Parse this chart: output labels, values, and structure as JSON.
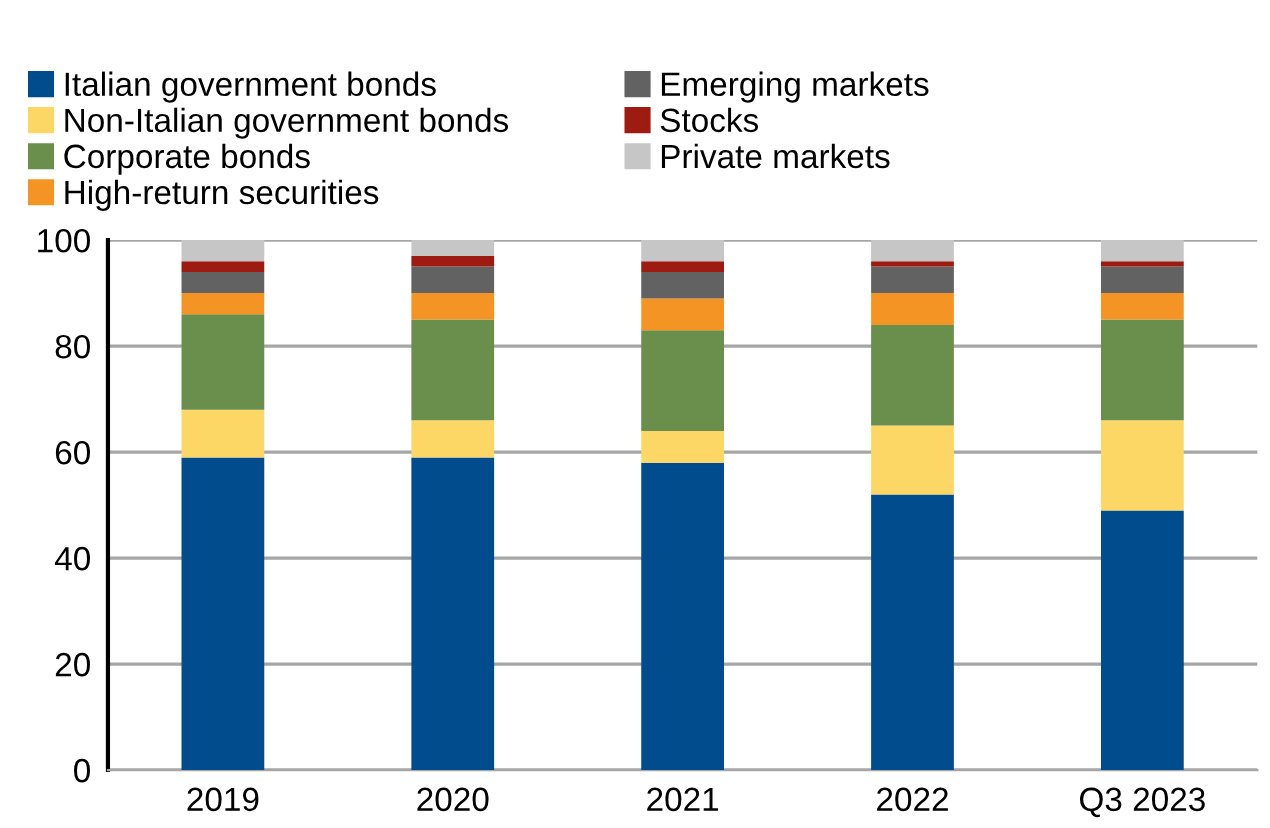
{
  "chart_data": {
    "type": "bar",
    "stacked": true,
    "categories": [
      "2019",
      "2020",
      "2021",
      "2022",
      "Q3 2023"
    ],
    "series": [
      {
        "name": "Italian government bonds",
        "color": "#004c8c",
        "values": [
          59,
          59,
          58,
          52,
          49
        ]
      },
      {
        "name": "Non-Italian government bonds",
        "color": "#fdd766",
        "values": [
          9,
          7,
          6,
          13,
          17
        ]
      },
      {
        "name": "Corporate bonds",
        "color": "#6a8f4d",
        "values": [
          18,
          19,
          19,
          19,
          19
        ]
      },
      {
        "name": "High-return securities",
        "color": "#f39425",
        "values": [
          4,
          5,
          6,
          6,
          5
        ]
      },
      {
        "name": "Emerging markets",
        "color": "#626262",
        "values": [
          4,
          5,
          5,
          5,
          5
        ]
      },
      {
        "name": "Stocks",
        "color": "#9e1b11",
        "values": [
          2,
          2,
          2,
          1,
          1
        ]
      },
      {
        "name": "Private markets",
        "color": "#c6c6c6",
        "values": [
          4,
          3,
          4,
          4,
          4
        ]
      }
    ],
    "ylim": [
      0,
      100
    ],
    "yticks": [
      0,
      20,
      40,
      60,
      80,
      100
    ],
    "grid": "y",
    "legend": "top"
  }
}
